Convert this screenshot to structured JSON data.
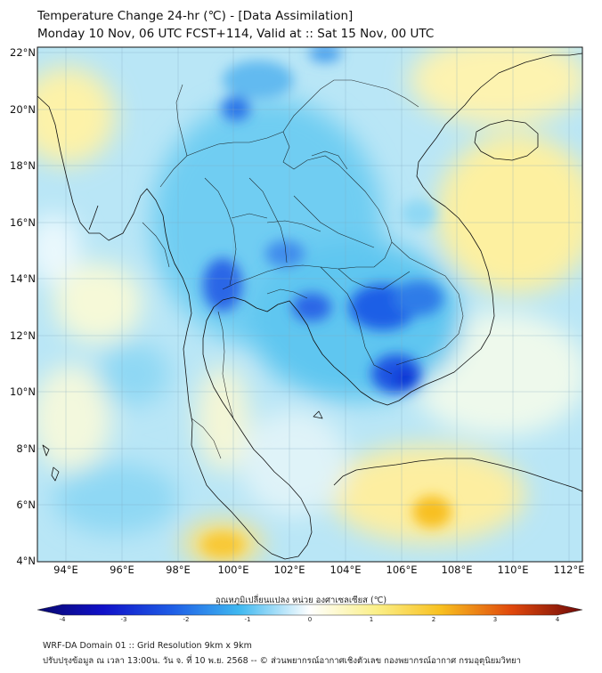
{
  "header": {
    "title_line1": "Temperature Change 24-hr (℃) - [Data Assimilation]",
    "title_line2": "Monday 10 Nov, 06 UTC FCST+114, Valid at :: Sat 15 Nov, 00 UTC"
  },
  "map": {
    "lat_labels": [
      "22°N",
      "20°N",
      "18°N",
      "16°N",
      "14°N",
      "12°N",
      "10°N",
      "8°N",
      "6°N",
      "4°N"
    ],
    "lon_labels": [
      "94°E",
      "96°E",
      "98°E",
      "100°E",
      "102°E",
      "104°E",
      "106°E",
      "108°E",
      "110°E",
      "112°E"
    ],
    "extent": {
      "lon_min": 93,
      "lon_max": 112.5,
      "lat_min": 4,
      "lat_max": 22.2
    }
  },
  "colorbar": {
    "label": "อุณหภูมิเปลี่ยนแปลง หน่วย องศาเซลเซียส (℃)",
    "ticks": [
      "-4",
      "-3",
      "-2",
      "-1",
      "0",
      "1",
      "2",
      "3",
      "4"
    ]
  },
  "footer": {
    "line1": "WRF-DA Domain 01 :: Grid Resolution 9km x 9km",
    "line2": "ปรับปรุงข้อมูล ณ เวลา 13:00น. วัน จ. ที่ 10 พ.ย. 2568 -- © ส่วนพยากรณ์อากาศเชิงตัวเลข กองพยากรณ์อากาศ กรมอุตุนิยมวิทยา"
  },
  "colors": {
    "strong_cooling": "#1f5fe6",
    "cooling": "#4fc3f0",
    "neutral": "#eaf8fd",
    "warming": "#fdf0a0",
    "strong_warming": "#f8c020"
  }
}
